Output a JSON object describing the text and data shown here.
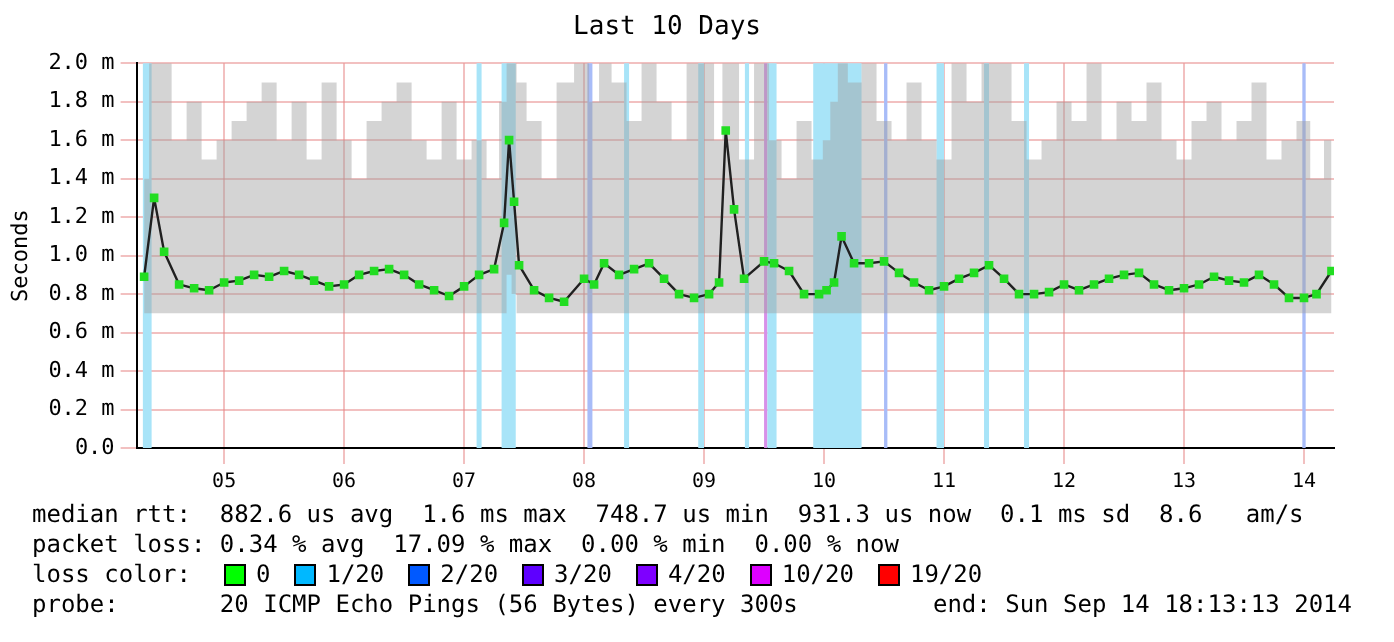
{
  "chart_data": {
    "type": "line",
    "title": "Last 10 Days",
    "ylabel": "Seconds",
    "xlim": [
      "2014-09-04T06:30",
      "2014-09-14T06:00"
    ],
    "xticks": [
      {
        "value": "2014-09-05",
        "label": "05"
      },
      {
        "value": "2014-09-06",
        "label": "06"
      },
      {
        "value": "2014-09-07",
        "label": "07"
      },
      {
        "value": "2014-09-08",
        "label": "08"
      },
      {
        "value": "2014-09-09",
        "label": "09"
      },
      {
        "value": "2014-09-10",
        "label": "10"
      },
      {
        "value": "2014-09-11",
        "label": "11"
      },
      {
        "value": "2014-09-12",
        "label": "12"
      },
      {
        "value": "2014-09-13",
        "label": "13"
      },
      {
        "value": "2014-09-14",
        "label": "14"
      }
    ],
    "ylim": [
      0,
      2
    ],
    "yticks": [
      {
        "value": 0,
        "label": "0.0"
      },
      {
        "value": 0.2,
        "label": "0.2 m"
      },
      {
        "value": 0.4,
        "label": "0.4 m"
      },
      {
        "value": 0.6,
        "label": "0.6 m"
      },
      {
        "value": 0.8,
        "label": "0.8 m"
      },
      {
        "value": 1,
        "label": "1.0 m"
      },
      {
        "value": 1.2,
        "label": "1.2 m"
      },
      {
        "value": 1.4,
        "label": "1.4 m"
      },
      {
        "value": 1.6,
        "label": "1.6 m"
      },
      {
        "value": 1.8,
        "label": "1.8 m"
      },
      {
        "value": 2,
        "label": "2.0 m"
      }
    ],
    "grid": true,
    "legend": false,
    "marker": "square",
    "line_style": "solid",
    "series": [
      {
        "color": "#22dd22",
        "x": [
          "2014-09-04T08:00",
          "2014-09-04T10:00",
          "2014-09-04T12:00",
          "2014-09-04T15:00",
          "2014-09-04T18:00",
          "2014-09-04T21:00",
          "2014-09-05T00:00",
          "2014-09-05T03:00",
          "2014-09-05T06:00",
          "2014-09-05T09:00",
          "2014-09-05T12:00",
          "2014-09-05T15:00",
          "2014-09-05T18:00",
          "2014-09-05T21:00",
          "2014-09-06T00:00",
          "2014-09-06T03:00",
          "2014-09-06T06:00",
          "2014-09-06T09:00",
          "2014-09-06T12:00",
          "2014-09-06T15:00",
          "2014-09-06T18:00",
          "2014-09-06T21:00",
          "2014-09-07T00:00",
          "2014-09-07T03:00",
          "2014-09-07T06:00",
          "2014-09-07T08:00",
          "2014-09-07T09:00",
          "2014-09-07T10:00",
          "2014-09-07T11:00",
          "2014-09-07T14:00",
          "2014-09-07T17:00",
          "2014-09-07T20:00",
          "2014-09-08T00:00",
          "2014-09-08T02:00",
          "2014-09-08T04:00",
          "2014-09-08T07:00",
          "2014-09-08T10:00",
          "2014-09-08T13:00",
          "2014-09-08T16:00",
          "2014-09-08T19:00",
          "2014-09-08T22:00",
          "2014-09-09T01:00",
          "2014-09-09T03:00",
          "2014-09-09T04:20",
          "2014-09-09T06:00",
          "2014-09-09T08:00",
          "2014-09-09T12:00",
          "2014-09-09T14:00",
          "2014-09-09T17:00",
          "2014-09-09T20:00",
          "2014-09-09T23:00",
          "2014-09-10T00:30",
          "2014-09-10T02:00",
          "2014-09-10T03:30",
          "2014-09-10T06:00",
          "2014-09-10T09:00",
          "2014-09-10T12:00",
          "2014-09-10T15:00",
          "2014-09-10T18:00",
          "2014-09-10T21:00",
          "2014-09-11T00:00",
          "2014-09-11T03:00",
          "2014-09-11T06:00",
          "2014-09-11T09:00",
          "2014-09-11T12:00",
          "2014-09-11T15:00",
          "2014-09-11T18:00",
          "2014-09-11T21:00",
          "2014-09-12T00:00",
          "2014-09-12T03:00",
          "2014-09-12T06:00",
          "2014-09-12T09:00",
          "2014-09-12T12:00",
          "2014-09-12T15:00",
          "2014-09-12T18:00",
          "2014-09-12T21:00",
          "2014-09-13T00:00",
          "2014-09-13T03:00",
          "2014-09-13T06:00",
          "2014-09-13T09:00",
          "2014-09-13T12:00",
          "2014-09-13T15:00",
          "2014-09-13T18:00",
          "2014-09-13T21:00",
          "2014-09-14T00:00",
          "2014-09-14T02:30",
          "2014-09-14T05:30"
        ],
        "values": [
          0.89,
          1.3,
          1.02,
          0.85,
          0.83,
          0.82,
          0.86,
          0.87,
          0.9,
          0.89,
          0.92,
          0.9,
          0.87,
          0.84,
          0.85,
          0.9,
          0.92,
          0.93,
          0.9,
          0.85,
          0.82,
          0.79,
          0.84,
          0.9,
          0.93,
          1.17,
          1.6,
          1.28,
          0.95,
          0.82,
          0.78,
          0.76,
          0.88,
          0.85,
          0.96,
          0.9,
          0.93,
          0.96,
          0.88,
          0.8,
          0.78,
          0.8,
          0.86,
          1.65,
          1.24,
          0.88,
          0.97,
          0.96,
          0.92,
          0.8,
          0.8,
          0.82,
          0.86,
          1.1,
          0.96,
          0.96,
          0.97,
          0.91,
          0.86,
          0.82,
          0.84,
          0.88,
          0.91,
          0.95,
          0.88,
          0.8,
          0.8,
          0.81,
          0.85,
          0.82,
          0.85,
          0.88,
          0.9,
          0.91,
          0.85,
          0.82,
          0.83,
          0.85,
          0.89,
          0.87,
          0.86,
          0.9,
          0.85,
          0.78,
          0.78,
          0.8,
          0.92
        ],
        "lower": [
          0.7,
          0.7,
          0.7,
          0.7,
          0.7,
          0.7,
          0.7,
          0.7,
          0.7,
          0.7,
          0.7,
          0.7,
          0.7,
          0.7,
          0.7,
          0.7,
          0.7,
          0.7,
          0.7,
          0.7,
          0.7,
          0.7,
          0.7,
          0.7,
          0.7,
          0.7,
          0.9,
          0.8,
          0.7,
          0.7,
          0.7,
          0.7,
          0.7,
          0.7,
          0.7,
          0.7,
          0.7,
          0.7,
          0.7,
          0.7,
          0.7,
          0.7,
          0.7,
          0.7,
          0.7,
          0.7,
          0.7,
          0.7,
          0.7,
          0.7,
          0.7,
          0.7,
          0.7,
          0.7,
          0.7,
          0.7,
          0.7,
          0.7,
          0.7,
          0.7,
          0.7,
          0.7,
          0.7,
          0.7,
          0.7,
          0.7,
          0.7,
          0.7,
          0.7,
          0.7,
          0.7,
          0.7,
          0.7,
          0.7,
          0.7,
          0.7,
          0.7,
          0.7,
          0.7,
          0.7,
          0.7,
          0.7,
          0.7,
          0.7,
          0.7,
          0.7,
          0.7
        ],
        "upper": [
          1.4,
          2,
          2,
          1.6,
          1.8,
          1.5,
          1.6,
          1.7,
          1.8,
          1.9,
          1.6,
          1.8,
          1.5,
          1.9,
          1.6,
          1.4,
          1.7,
          1.8,
          1.9,
          1.6,
          1.5,
          1.8,
          1.5,
          1.6,
          1.4,
          1.8,
          2,
          2,
          1.9,
          1.7,
          1.4,
          1.9,
          2,
          1.8,
          2,
          1.9,
          1.7,
          2,
          1.8,
          1.6,
          2,
          2,
          1.6,
          2,
          2,
          1.5,
          2,
          1.6,
          1.4,
          1.7,
          1.5,
          1.6,
          1.8,
          2,
          1.9,
          2,
          1.7,
          1.6,
          1.9,
          1.6,
          1.5,
          2,
          1.8,
          2,
          2,
          1.7,
          1.5,
          1.6,
          1.8,
          1.7,
          2,
          1.6,
          1.8,
          1.7,
          1.9,
          1.6,
          1.5,
          1.7,
          1.8,
          1.6,
          1.7,
          1.9,
          1.5,
          1.6,
          1.7,
          1.4,
          1.6
        ]
      }
    ],
    "bands": [
      {
        "axis": "x",
        "from": "2014-09-04T07:45",
        "to": "2014-09-04T09:30",
        "color": "#a8e4f8"
      },
      {
        "axis": "x",
        "from": "2014-09-07T02:30",
        "to": "2014-09-07T03:30",
        "color": "#a8e4f8"
      },
      {
        "axis": "x",
        "from": "2014-09-07T07:30",
        "to": "2014-09-07T10:20",
        "color": "#a8e4f8"
      },
      {
        "axis": "x",
        "from": "2014-09-08T00:40",
        "to": "2014-09-08T01:40",
        "color": "#a8bcf8"
      },
      {
        "axis": "x",
        "from": "2014-09-08T08:00",
        "to": "2014-09-08T09:00",
        "color": "#a8e4f8"
      },
      {
        "axis": "x",
        "from": "2014-09-08T22:50",
        "to": "2014-09-09T00:00",
        "color": "#a8e4f8"
      },
      {
        "axis": "x",
        "from": "2014-09-09T08:10",
        "to": "2014-09-09T09:00",
        "color": "#a8e4f8"
      },
      {
        "axis": "x",
        "from": "2014-09-09T12:00",
        "to": "2014-09-09T12:40",
        "color": "#d890e8"
      },
      {
        "axis": "x",
        "from": "2014-09-09T12:40",
        "to": "2014-09-09T14:30",
        "color": "#a8e4f8"
      },
      {
        "axis": "x",
        "from": "2014-09-09T21:50",
        "to": "2014-09-10T07:30",
        "color": "#a8e4f8"
      },
      {
        "axis": "x",
        "from": "2014-09-10T12:00",
        "to": "2014-09-10T12:40",
        "color": "#a8bcf8"
      },
      {
        "axis": "x",
        "from": "2014-09-10T22:30",
        "to": "2014-09-11T00:00",
        "color": "#a8e4f8"
      },
      {
        "axis": "x",
        "from": "2014-09-11T08:00",
        "to": "2014-09-11T09:00",
        "color": "#a8e4f8"
      },
      {
        "axis": "x",
        "from": "2014-09-11T16:00",
        "to": "2014-09-11T17:00",
        "color": "#a8e4f8"
      },
      {
        "axis": "x",
        "from": "2014-09-13T23:40",
        "to": "2014-09-14T00:20",
        "color": "#a8bcf8"
      }
    ],
    "annotations": [
      "median rtt:  882.6 us avg  1.6 ms max  748.7 us min  931.3 us now  0.1 ms sd  8.6   am/s",
      "packet loss: 0.34 % avg  17.09 % max  0.00 % min  0.00 % now",
      "loss color:",
      "0",
      "1/20",
      "2/20",
      "3/20",
      "4/20",
      "10/20",
      "19/20",
      "probe:       20 ICMP Echo Pings (56 Bytes) every 300s",
      "end: Sun Sep 14 18:13:13 2014"
    ]
  }
}
